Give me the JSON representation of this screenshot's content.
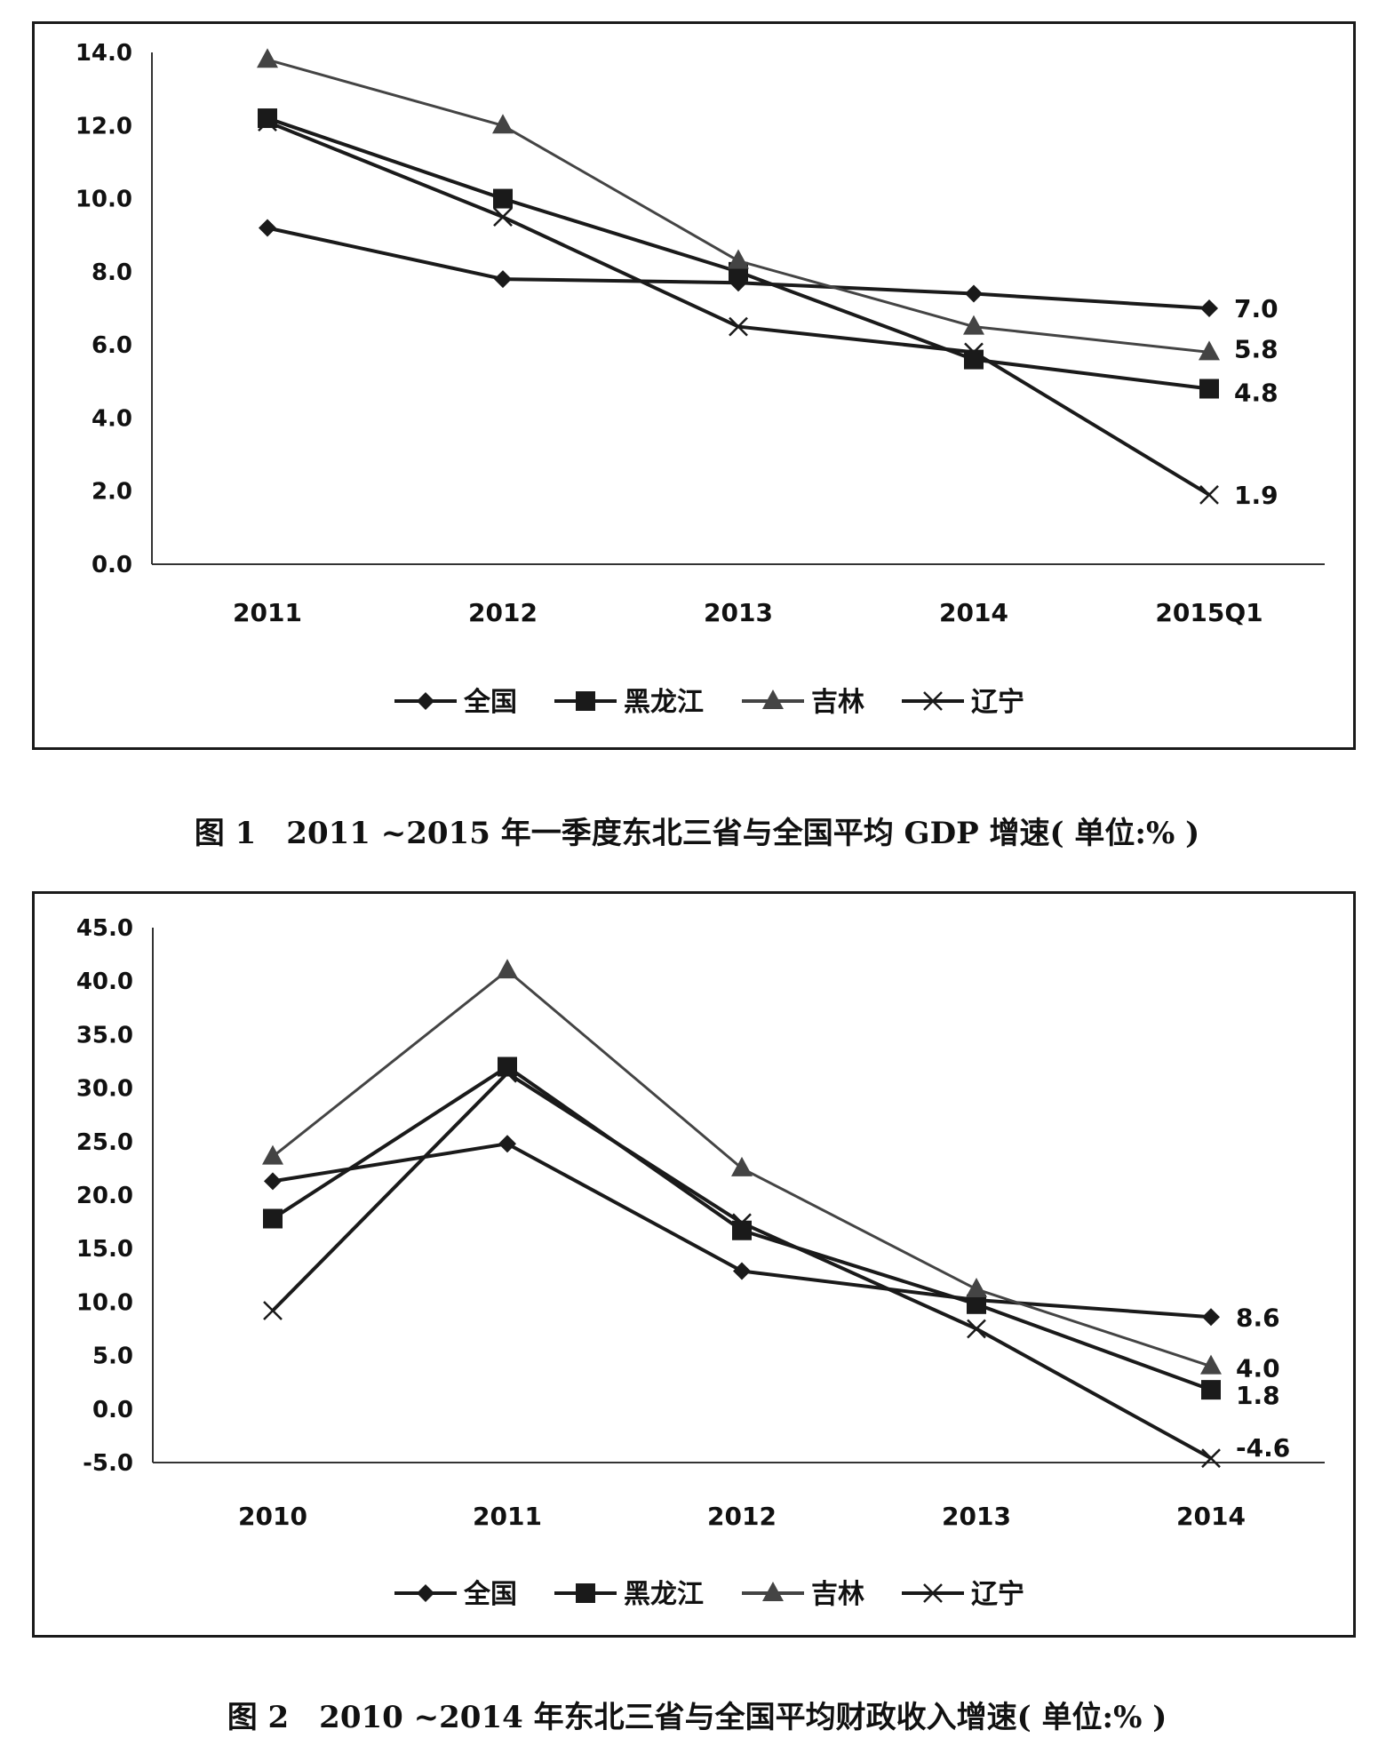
{
  "chart_data": [
    {
      "type": "line",
      "title": "",
      "categories": [
        "2011",
        "2012",
        "2013",
        "2014",
        "2015Q1"
      ],
      "ylim": [
        0,
        14
      ],
      "yticks": [
        "0.0",
        "2.0",
        "4.0",
        "6.0",
        "8.0",
        "10.0",
        "12.0",
        "14.0"
      ],
      "ytick_values": [
        0,
        2,
        4,
        6,
        8,
        10,
        12,
        14
      ],
      "grid": false,
      "legend_position": "bottom",
      "series": [
        {
          "name": "全国",
          "marker": "diamond",
          "color": "#1a1a1a",
          "values": [
            9.2,
            7.8,
            7.7,
            7.4,
            7.0
          ],
          "end_label": "7.0"
        },
        {
          "name": "黑龙江",
          "marker": "square",
          "color": "#1a1a1a",
          "values": [
            12.2,
            10.0,
            8.0,
            5.6,
            4.8
          ],
          "end_label": "4.8"
        },
        {
          "name": "吉林",
          "marker": "triangle",
          "color": "#444444",
          "values": [
            13.8,
            12.0,
            8.3,
            6.5,
            5.8
          ],
          "end_label": "5.8"
        },
        {
          "name": "辽宁",
          "marker": "x",
          "color": "#1a1a1a",
          "values": [
            12.1,
            9.5,
            6.5,
            5.8,
            1.9
          ],
          "end_label": "1.9"
        }
      ]
    },
    {
      "type": "line",
      "title": "",
      "categories": [
        "2010",
        "2011",
        "2012",
        "2013",
        "2014"
      ],
      "ylim": [
        -5,
        45
      ],
      "yticks": [
        "-5.0",
        "0.0",
        "5.0",
        "10.0",
        "15.0",
        "20.0",
        "25.0",
        "30.0",
        "35.0",
        "40.0",
        "45.0"
      ],
      "ytick_values": [
        -5,
        0,
        5,
        10,
        15,
        20,
        25,
        30,
        35,
        40,
        45
      ],
      "grid": false,
      "legend_position": "bottom",
      "series": [
        {
          "name": "全国",
          "marker": "diamond",
          "color": "#1a1a1a",
          "values": [
            21.3,
            24.8,
            12.9,
            10.2,
            8.6
          ],
          "end_label": "8.6"
        },
        {
          "name": "黑龙江",
          "marker": "square",
          "color": "#1a1a1a",
          "values": [
            17.8,
            32.0,
            16.7,
            9.8,
            1.8
          ],
          "end_label": "1.8"
        },
        {
          "name": "吉林",
          "marker": "triangle",
          "color": "#444444",
          "values": [
            23.6,
            41.0,
            22.5,
            11.2,
            4.0
          ],
          "end_label": "4.0"
        },
        {
          "name": "辽宁",
          "marker": "x",
          "color": "#1a1a1a",
          "values": [
            9.2,
            31.4,
            17.4,
            7.5,
            -4.6
          ],
          "end_label": "-4.6"
        }
      ]
    }
  ],
  "captions": {
    "fig1": "图 1　2011 ~2015 年一季度东北三省与全国平均 GDP 增速( 单位:% )",
    "fig2": "图 2　2010 ~2014 年东北三省与全国平均财政收入增速( 单位:% )"
  }
}
